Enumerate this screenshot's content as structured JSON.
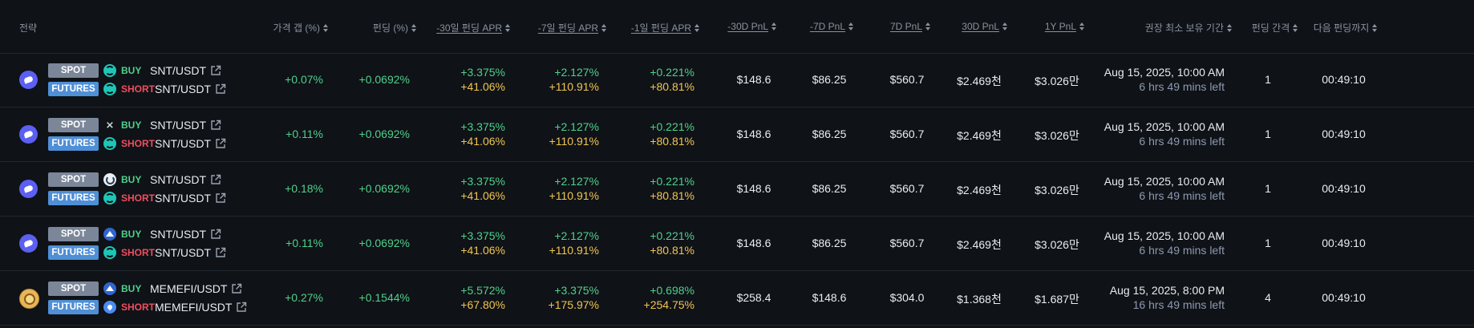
{
  "headers": {
    "strategy": "전략",
    "price_gap": "가격 갭 (%)",
    "funding": "펀딩 (%)",
    "apr_30d": "-30일 펀딩 APR",
    "apr_7d": "-7일 펀딩 APR",
    "apr_1d": "-1일 펀딩 APR",
    "pnl_30d_neg": "-30D PnL",
    "pnl_7d_neg": "-7D PnL",
    "pnl_7d": "7D PnL",
    "pnl_30d": "30D PnL",
    "pnl_1y": "1Y PnL",
    "min_hold": "권장 최소 보유 기간",
    "interval": "펀딩 간격",
    "next_funding": "다음 펀딩까지"
  },
  "labels": {
    "spot": "SPOT",
    "futures": "FUTURES",
    "buy": "BUY",
    "short": "SHORT"
  },
  "rows": [
    {
      "coin": "snt",
      "spot_exchange": "teal-s",
      "fut_exchange": "teal-s",
      "spot_pair": "SNT/USDT",
      "fut_pair": "SNT/USDT",
      "price_gap": "+0.07%",
      "funding": "+0.0692%",
      "apr_30d_a": "+3.375%",
      "apr_30d_b": "+41.06%",
      "apr_7d_a": "+2.127%",
      "apr_7d_b": "+110.91%",
      "apr_1d_a": "+0.221%",
      "apr_1d_b": "+80.81%",
      "pnl_30d_neg": "$148.6",
      "pnl_7d_neg": "$86.25",
      "pnl_7d": "$560.7",
      "pnl_30d": "$2.469천",
      "pnl_1y": "$3.026만",
      "hold_date": "Aug 15, 2025, 10:00 AM",
      "hold_left": "6 hrs 49 mins left",
      "interval": "1",
      "next": "00:49:10"
    },
    {
      "coin": "snt",
      "spot_exchange": "x-glyph",
      "fut_exchange": "teal-s",
      "spot_pair": "SNT/USDT",
      "fut_pair": "SNT/USDT",
      "price_gap": "+0.11%",
      "funding": "+0.0692%",
      "apr_30d_a": "+3.375%",
      "apr_30d_b": "+41.06%",
      "apr_7d_a": "+2.127%",
      "apr_7d_b": "+110.91%",
      "apr_1d_a": "+0.221%",
      "apr_1d_b": "+80.81%",
      "pnl_30d_neg": "$148.6",
      "pnl_7d_neg": "$86.25",
      "pnl_7d": "$560.7",
      "pnl_30d": "$2.469천",
      "pnl_1y": "$3.026만",
      "hold_date": "Aug 15, 2025, 10:00 AM",
      "hold_left": "6 hrs 49 mins left",
      "interval": "1",
      "next": "00:49:10"
    },
    {
      "coin": "snt",
      "spot_exchange": "g-circle",
      "fut_exchange": "teal-s",
      "spot_pair": "SNT/USDT",
      "fut_pair": "SNT/USDT",
      "price_gap": "+0.18%",
      "funding": "+0.0692%",
      "apr_30d_a": "+3.375%",
      "apr_30d_b": "+41.06%",
      "apr_7d_a": "+2.127%",
      "apr_7d_b": "+110.91%",
      "apr_1d_a": "+0.221%",
      "apr_1d_b": "+80.81%",
      "pnl_30d_neg": "$148.6",
      "pnl_7d_neg": "$86.25",
      "pnl_7d": "$560.7",
      "pnl_30d": "$2.469천",
      "pnl_1y": "$3.026만",
      "hold_date": "Aug 15, 2025, 10:00 AM",
      "hold_left": "6 hrs 49 mins left",
      "interval": "1",
      "next": "00:49:10"
    },
    {
      "coin": "snt",
      "spot_exchange": "mountain",
      "fut_exchange": "teal-s",
      "spot_pair": "SNT/USDT",
      "fut_pair": "SNT/USDT",
      "price_gap": "+0.11%",
      "funding": "+0.0692%",
      "apr_30d_a": "+3.375%",
      "apr_30d_b": "+41.06%",
      "apr_7d_a": "+2.127%",
      "apr_7d_b": "+110.91%",
      "apr_1d_a": "+0.221%",
      "apr_1d_b": "+80.81%",
      "pnl_30d_neg": "$148.6",
      "pnl_7d_neg": "$86.25",
      "pnl_7d": "$560.7",
      "pnl_30d": "$2.469천",
      "pnl_1y": "$3.026만",
      "hold_date": "Aug 15, 2025, 10:00 AM",
      "hold_left": "6 hrs 49 mins left",
      "interval": "1",
      "next": "00:49:10"
    },
    {
      "coin": "memefi",
      "spot_exchange": "mountain",
      "fut_exchange": "blue-drop",
      "spot_pair": "MEMEFI/USDT",
      "fut_pair": "MEMEFI/USDT",
      "price_gap": "+0.27%",
      "funding": "+0.1544%",
      "apr_30d_a": "+5.572%",
      "apr_30d_b": "+67.80%",
      "apr_7d_a": "+3.375%",
      "apr_7d_b": "+175.97%",
      "apr_1d_a": "+0.698%",
      "apr_1d_b": "+254.75%",
      "pnl_30d_neg": "$258.4",
      "pnl_7d_neg": "$148.6",
      "pnl_7d": "$304.0",
      "pnl_30d": "$1.368천",
      "pnl_1y": "$1.687만",
      "hold_date": "Aug 15, 2025, 8:00 PM",
      "hold_left": "16 hrs 49 mins left",
      "interval": "4",
      "next": "00:49:10"
    }
  ],
  "colors": {
    "background": "#0f1217",
    "positive": "#4fd18b",
    "apr_annual": "#f1c550",
    "short": "#ef4e5f",
    "spot_pill": "#7b8699",
    "futures_pill": "#4f8fd6"
  }
}
